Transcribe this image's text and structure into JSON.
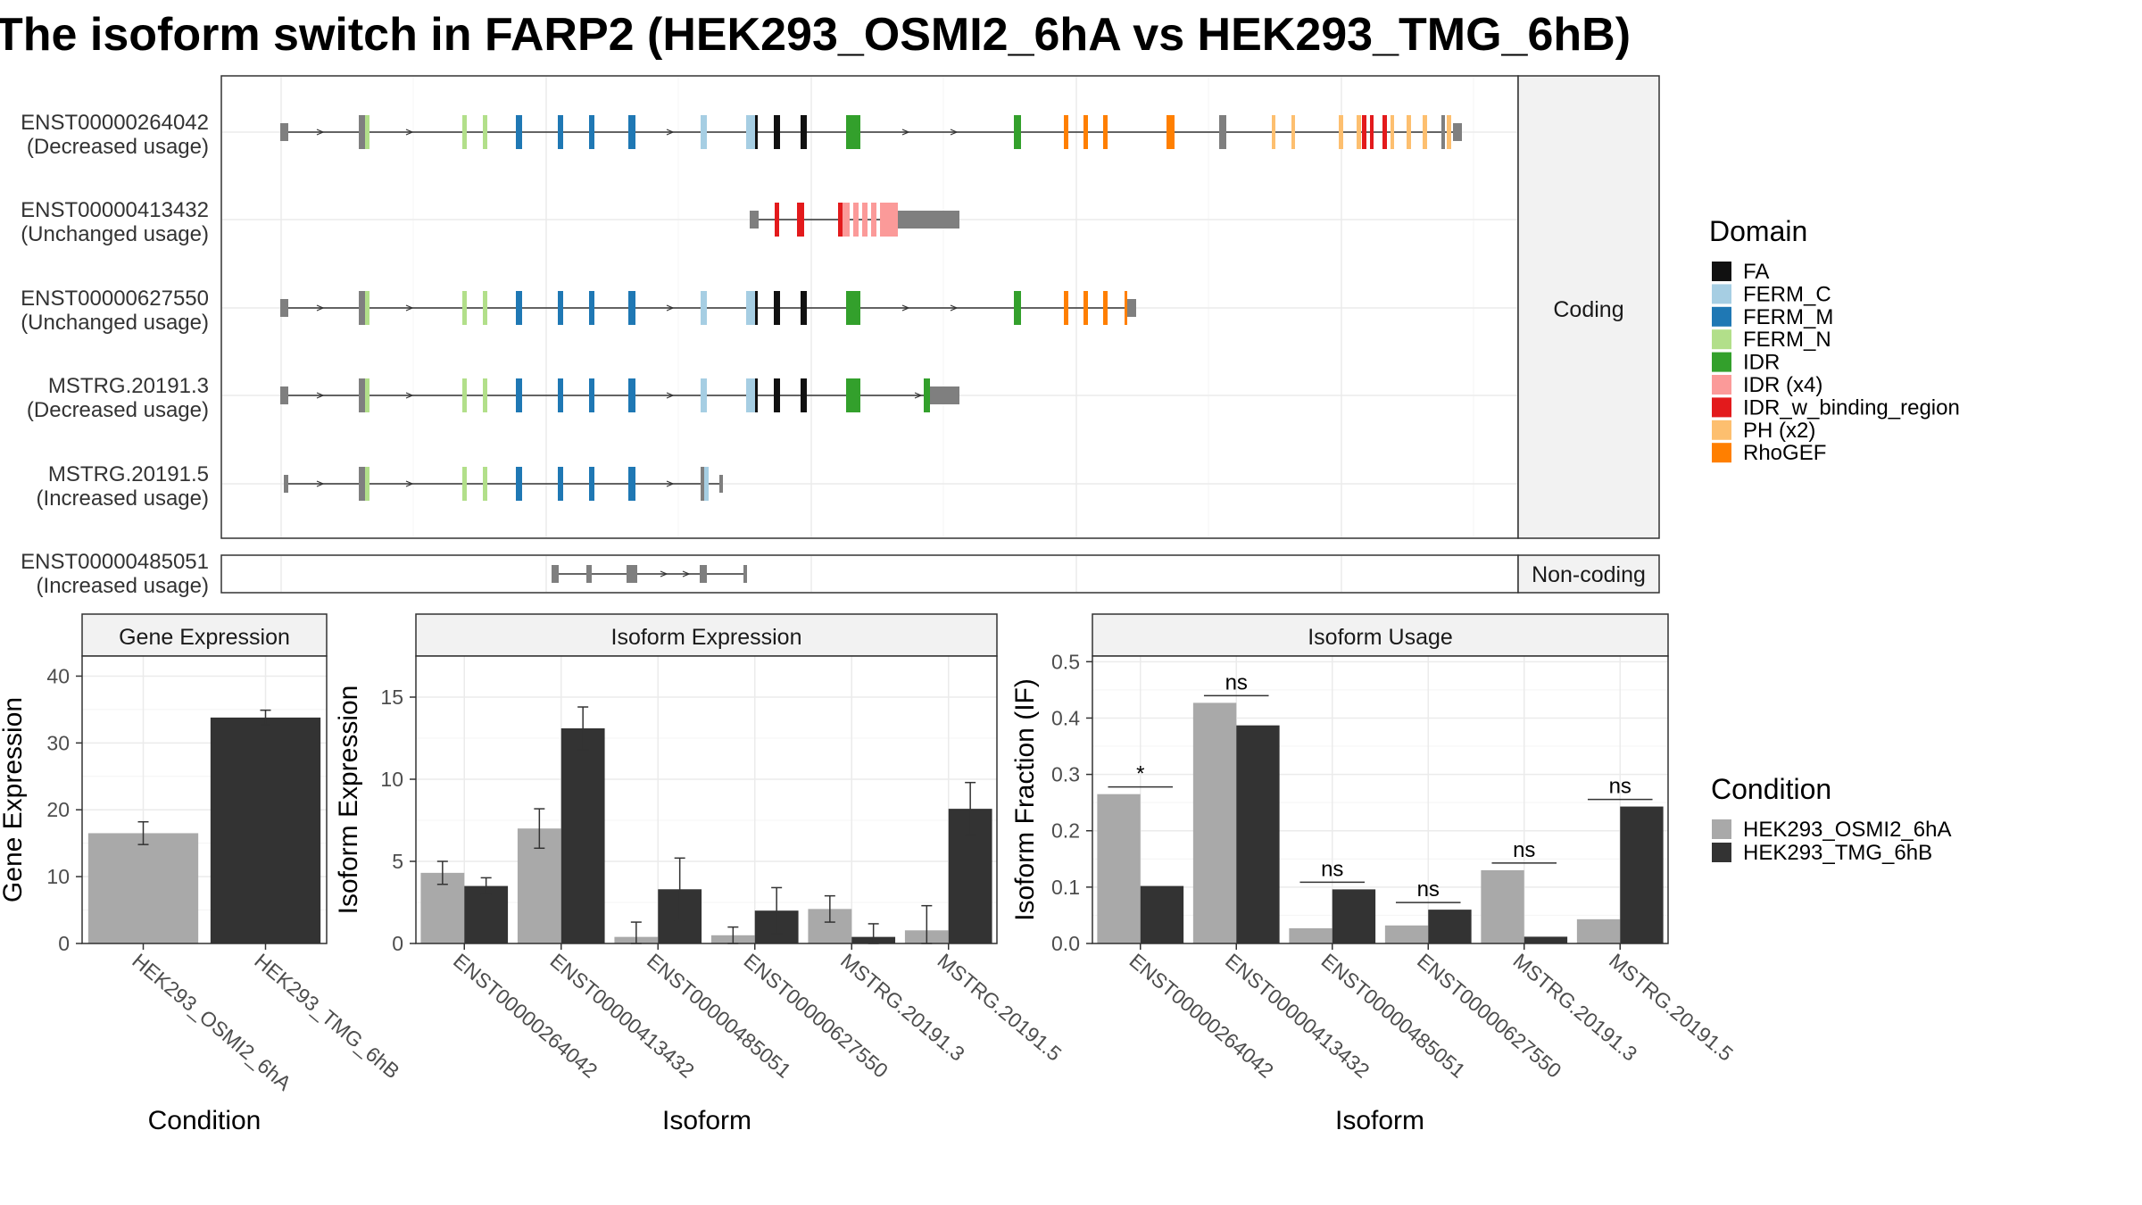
{
  "title": "The isoform switch in FARP2 (HEK293_OSMI2_6hA vs HEK293_TMG_6hB)",
  "structure": {
    "facets": {
      "coding": "Coding",
      "noncoding": "Non-coding"
    },
    "transcripts": [
      {
        "id": "ENST00000264042",
        "usage": "(Decreased usage)",
        "group": "coding"
      },
      {
        "id": "ENST00000413432",
        "usage": "(Unchanged usage)",
        "group": "coding"
      },
      {
        "id": "ENST00000627550",
        "usage": "(Unchanged usage)",
        "group": "coding"
      },
      {
        "id": "MSTRG.20191.3",
        "usage": "(Decreased usage)",
        "group": "coding"
      },
      {
        "id": "MSTRG.20191.5",
        "usage": "(Increased usage)",
        "group": "coding"
      },
      {
        "id": "ENST00000485051",
        "usage": "(Increased usage)",
        "group": "noncoding"
      }
    ],
    "domain_legend_title": "Domain",
    "domains": [
      {
        "name": "FA",
        "color": "#111111"
      },
      {
        "name": "FERM_C",
        "color": "#a6cee3"
      },
      {
        "name": "FERM_M",
        "color": "#1f78b4"
      },
      {
        "name": "FERM_N",
        "color": "#b2df8a"
      },
      {
        "name": "IDR",
        "color": "#33a02c"
      },
      {
        "name": "IDR (x4)",
        "color": "#fb9a99"
      },
      {
        "name": "IDR_w_binding_region",
        "color": "#e31a1c"
      },
      {
        "name": "PH (x2)",
        "color": "#fdbf6f"
      },
      {
        "name": "RhoGEF",
        "color": "#ff7f00"
      }
    ]
  },
  "condition_legend": {
    "title": "Condition",
    "items": [
      {
        "name": "HEK293_OSMI2_6hA",
        "color": "#a9a9a9"
      },
      {
        "name": "HEK293_TMG_6hB",
        "color": "#333333"
      }
    ]
  },
  "chart_data": [
    {
      "type": "bar",
      "panel_title": "Gene Expression",
      "xlabel": "Condition",
      "ylabel": "Gene Expression",
      "ylim": [
        0,
        43
      ],
      "yticks": [
        0,
        10,
        20,
        30,
        40
      ],
      "categories": [
        "HEK293_OSMI2_6hA",
        "HEK293_TMG_6hB"
      ],
      "values": [
        16.5,
        33.8
      ],
      "errors": [
        1.7,
        1.1
      ],
      "colors": [
        "#a9a9a9",
        "#333333"
      ]
    },
    {
      "type": "bar",
      "panel_title": "Isoform Expression",
      "xlabel": "Isoform",
      "ylabel": "Isoform Expression",
      "ylim": [
        0,
        17.5
      ],
      "yticks": [
        0,
        5,
        10,
        15
      ],
      "categories": [
        "ENST00000264042",
        "ENST00000413432",
        "ENST00000485051",
        "ENST00000627550",
        "MSTRG.20191.3",
        "MSTRG.20191.5"
      ],
      "series": [
        {
          "name": "HEK293_OSMI2_6hA",
          "values": [
            4.3,
            7.0,
            0.4,
            0.5,
            2.1,
            0.8
          ],
          "errors": [
            0.7,
            1.2,
            0.9,
            0.5,
            0.8,
            1.5
          ]
        },
        {
          "name": "HEK293_TMG_6hB",
          "values": [
            3.5,
            13.1,
            3.3,
            2.0,
            0.4,
            8.2
          ],
          "errors": [
            0.5,
            1.3,
            1.9,
            1.4,
            0.8,
            1.6
          ]
        }
      ]
    },
    {
      "type": "bar",
      "panel_title": "Isoform Usage",
      "xlabel": "Isoform",
      "ylabel": "Isoform Fraction (IF)",
      "ylim": [
        0,
        0.51
      ],
      "yticks": [
        0.0,
        0.1,
        0.2,
        0.3,
        0.4,
        0.5
      ],
      "categories": [
        "ENST00000264042",
        "ENST00000413432",
        "ENST00000485051",
        "ENST00000627550",
        "MSTRG.20191.3",
        "MSTRG.20191.5"
      ],
      "series": [
        {
          "name": "HEK293_OSMI2_6hA",
          "values": [
            0.265,
            0.427,
            0.027,
            0.032,
            0.13,
            0.043
          ]
        },
        {
          "name": "HEK293_TMG_6hB",
          "values": [
            0.102,
            0.387,
            0.096,
            0.06,
            0.012,
            0.243
          ]
        }
      ],
      "significance": [
        "*",
        "ns",
        "ns",
        "ns",
        "ns",
        "ns"
      ]
    }
  ]
}
